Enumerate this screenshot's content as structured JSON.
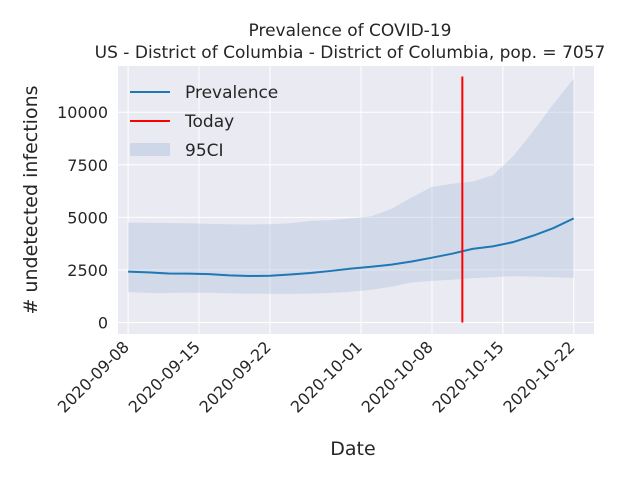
{
  "chart_data": {
    "type": "line",
    "title": "Prevalence of COVID-19",
    "subtitle": "US - District of Columbia - District of Columbia, pop. = 7057",
    "xlabel": "Date",
    "ylabel": "# undetected infections",
    "x_ticks": [
      "2020-09-08",
      "2020-09-15",
      "2020-09-22",
      "2020-10-01",
      "2020-10-08",
      "2020-10-15",
      "2020-10-22"
    ],
    "y_ticks": [
      0,
      2500,
      5000,
      7500,
      10000
    ],
    "y_tick_labels": [
      "0",
      "2500",
      "5000",
      "7500",
      "10000"
    ],
    "xlim": [
      "2020-09-07",
      "2020-10-24"
    ],
    "ylim": [
      -550,
      12200
    ],
    "grid": true,
    "legend_position": "top-left",
    "series": [
      {
        "name": "Prevalence",
        "color": "#1f77b4",
        "x": [
          "2020-09-08",
          "2020-09-10",
          "2020-09-12",
          "2020-09-14",
          "2020-09-16",
          "2020-09-18",
          "2020-09-20",
          "2020-09-22",
          "2020-09-24",
          "2020-09-26",
          "2020-09-28",
          "2020-09-30",
          "2020-10-02",
          "2020-10-04",
          "2020-10-06",
          "2020-10-08",
          "2020-10-10",
          "2020-10-12",
          "2020-10-14",
          "2020-10-16",
          "2020-10-18",
          "2020-10-20",
          "2020-10-22"
        ],
        "values": [
          2420,
          2380,
          2330,
          2320,
          2300,
          2240,
          2210,
          2220,
          2280,
          2350,
          2450,
          2560,
          2650,
          2750,
          2900,
          3080,
          3270,
          3500,
          3620,
          3820,
          4130,
          4490,
          4950
        ]
      },
      {
        "name": "Today",
        "color": "#ff0000",
        "x": [
          "2020-10-11",
          "2020-10-11"
        ],
        "values": [
          0,
          11700
        ]
      }
    ],
    "bands": [
      {
        "name": "95CI",
        "color": "#b0c4de",
        "x": [
          "2020-09-08",
          "2020-09-10",
          "2020-09-12",
          "2020-09-14",
          "2020-09-16",
          "2020-09-18",
          "2020-09-20",
          "2020-09-22",
          "2020-09-24",
          "2020-09-26",
          "2020-09-28",
          "2020-09-30",
          "2020-10-02",
          "2020-10-04",
          "2020-10-06",
          "2020-10-08",
          "2020-10-10",
          "2020-10-12",
          "2020-10-14",
          "2020-10-16",
          "2020-10-18",
          "2020-10-20",
          "2020-10-22"
        ],
        "lower": [
          1450,
          1400,
          1400,
          1420,
          1410,
          1380,
          1370,
          1360,
          1360,
          1370,
          1400,
          1460,
          1550,
          1700,
          1900,
          1980,
          2030,
          2100,
          2150,
          2200,
          2180,
          2150,
          2120
        ],
        "upper": [
          4750,
          4740,
          4730,
          4720,
          4690,
          4670,
          4660,
          4680,
          4720,
          4830,
          4870,
          4950,
          5050,
          5400,
          5950,
          6450,
          6600,
          6700,
          7000,
          7900,
          9100,
          10400,
          11600
        ]
      }
    ]
  }
}
